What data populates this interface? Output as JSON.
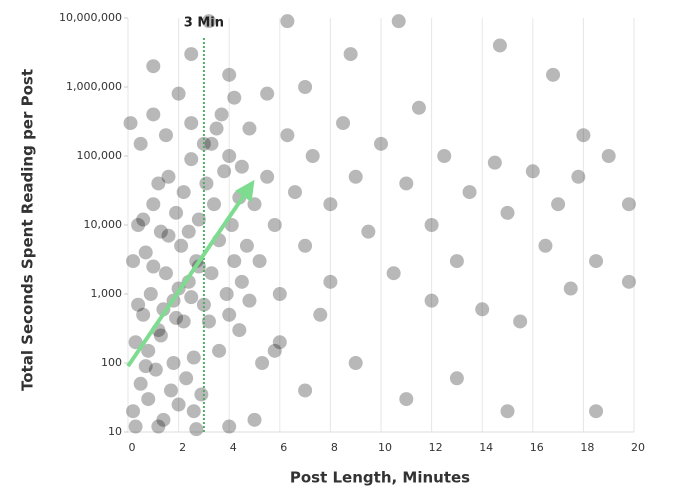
{
  "chart_data": {
    "type": "scatter",
    "x_label": "Post Length, Minutes",
    "y_label": "Total Seconds Spent Reading per Post",
    "color": "#000000",
    "log_y": true,
    "grid": true,
    "xlim": [
      0,
      20
    ],
    "xticks": [
      0,
      2,
      4,
      6,
      8,
      10,
      12,
      14,
      16,
      18,
      20
    ],
    "ylim": [
      10,
      10000000
    ],
    "yticks": [
      10,
      100,
      {
        "value": 1000,
        "label": "1,000"
      },
      {
        "value": 10000,
        "label": "10,000"
      },
      {
        "value": 100000,
        "label": "100,000"
      },
      {
        "value": 1000000,
        "label": "1,000,000"
      },
      {
        "value": 10000000,
        "label": "10,000,000"
      }
    ],
    "x": [
      0.2,
      0.5,
      0.8,
      1.1,
      1.4,
      1.7,
      2.0,
      2.3,
      2.6,
      2.9,
      0.3,
      0.6,
      0.9,
      1.2,
      1.5,
      1.8,
      2.1,
      2.4,
      2.7,
      3.0,
      0.4,
      0.7,
      1.0,
      1.3,
      1.6,
      1.9,
      2.2,
      2.5,
      2.8,
      3.1,
      3.3,
      3.6,
      3.9,
      4.2,
      4.5,
      3.4,
      3.8,
      4.1,
      4.4,
      4.7,
      0.1,
      0.5,
      1.0,
      1.5,
      2.0,
      2.5,
      3.0,
      3.5,
      4.0,
      4.5,
      0.2,
      0.4,
      0.6,
      0.8,
      1.0,
      1.2,
      1.4,
      1.6,
      1.8,
      2.0,
      2.2,
      2.4,
      2.6,
      2.8,
      3.2,
      3.6,
      4.0,
      4.4,
      4.8,
      5.0,
      5.2,
      5.5,
      5.8,
      6.0,
      6.3,
      6.6,
      7.0,
      7.3,
      7.6,
      8.0,
      1.0,
      2.5,
      4.0,
      5.5,
      7.0,
      8.5,
      9.0,
      9.5,
      10,
      10.5,
      11,
      11.5,
      12,
      12.5,
      13,
      13.5,
      14,
      14.5,
      15,
      15.5,
      16,
      16.5,
      17,
      17.5,
      18,
      18.5,
      19,
      19.8,
      19.8,
      17.8,
      3.2,
      6.3,
      8.8,
      10.7,
      14.7,
      16.8,
      5.0,
      7.0,
      9.0,
      11.0,
      13.0,
      15.0,
      18.5,
      0.3,
      1.2,
      2.7,
      4.0,
      6.0,
      8.0,
      12.0,
      0.7,
      1.3,
      1.9,
      2.5,
      3.3,
      3.7,
      4.2,
      4.8,
      5.3,
      5.8
    ],
    "values": [
      20,
      50,
      30,
      80,
      15,
      40,
      25,
      60,
      120,
      35,
      200,
      500,
      1000,
      300,
      2000,
      800,
      5000,
      1500,
      3000,
      700,
      10000,
      4000,
      20000,
      8000,
      50000,
      15000,
      30000,
      90000,
      12000,
      40000,
      2000,
      6000,
      1000,
      3000,
      1500,
      20000,
      60000,
      10000,
      25000,
      5000,
      300000,
      150000,
      400000,
      200000,
      800000,
      300000,
      150000,
      250000,
      100000,
      70000,
      3000,
      700,
      12000,
      150,
      2500,
      40000,
      600,
      7000,
      100,
      1200,
      400,
      8000,
      20,
      2500,
      400,
      150,
      500,
      300,
      800,
      20000,
      3000,
      50000,
      10000,
      1000,
      200000,
      30000,
      5000,
      100000,
      500,
      20000,
      2000000,
      3000000,
      1500000,
      800000,
      1000000,
      300000,
      50000,
      8000,
      150000,
      2000,
      40000,
      500000,
      10000,
      100000,
      3000,
      30000,
      600,
      80000,
      15000,
      400,
      60000,
      5000,
      20000,
      1200,
      200000,
      3000,
      100000,
      20000,
      1500,
      50000,
      9000000,
      9000000,
      3000000,
      9000000,
      4000000,
      1500000,
      15,
      40,
      100,
      30,
      60,
      20,
      20,
      12,
      12,
      11,
      12,
      200,
      1500,
      800,
      90,
      250,
      450,
      900,
      150000,
      400000,
      700000,
      250000,
      100,
      150
    ],
    "annotation": {
      "text": "3 Min",
      "x": 3,
      "color": "#4caf63"
    },
    "trend_arrow": {
      "x": [
        0,
        5
      ],
      "y": [
        90,
        45000
      ],
      "color": "#7ddc8f"
    }
  }
}
